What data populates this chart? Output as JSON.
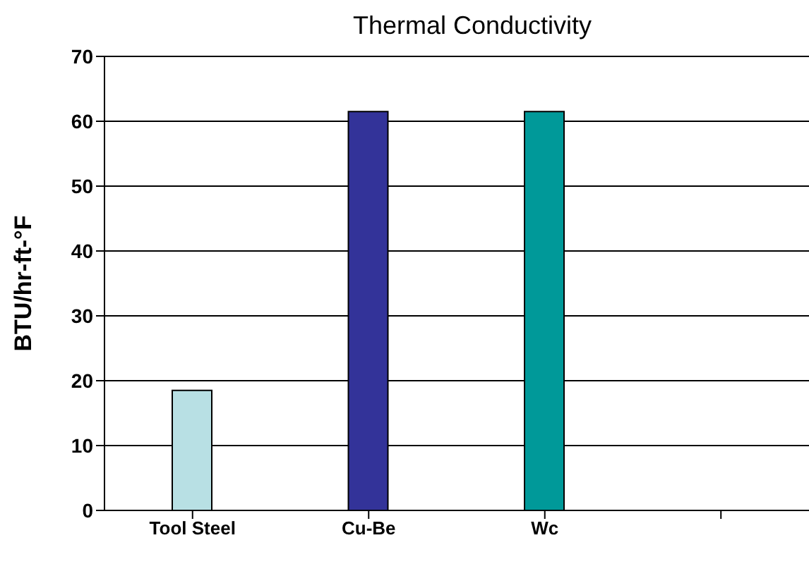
{
  "chart_data": {
    "type": "bar",
    "title": "Thermal Conductivity",
    "ylabel": "BTU/hr-ft-°F",
    "categories": [
      "Tool Steel",
      "Cu-Be",
      "Wc",
      null
    ],
    "values": [
      18.5,
      61.5,
      61.5,
      null
    ],
    "colors": [
      "#b8e0e4",
      "#333399",
      "#009999",
      "#808080"
    ],
    "ylim": [
      0,
      70
    ],
    "yticks": [
      0,
      10,
      20,
      30,
      40,
      50,
      60,
      70
    ],
    "grid": "y"
  }
}
